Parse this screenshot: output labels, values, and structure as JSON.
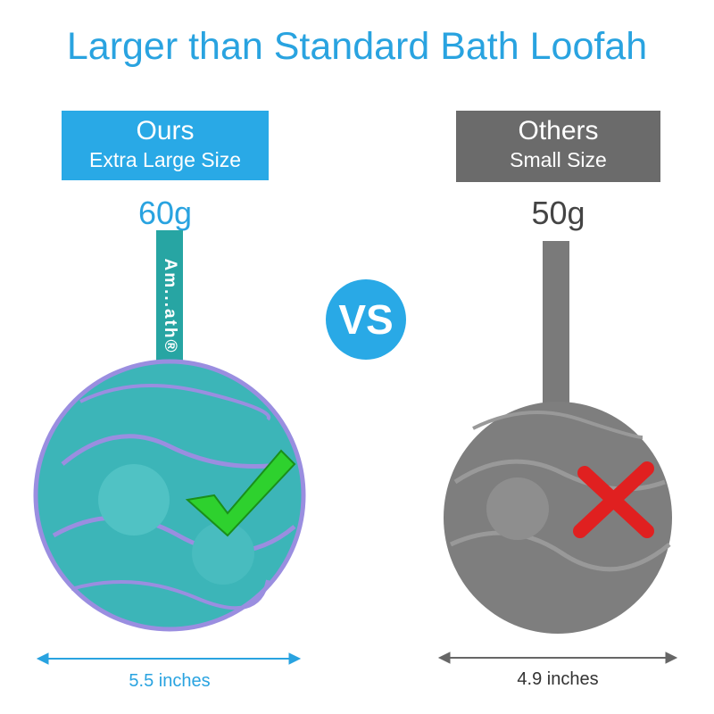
{
  "title": "Larger than Standard Bath Loofah",
  "ours": {
    "heading": "Ours",
    "subheading": "Extra Large Size",
    "weight": "60g",
    "size": "5.5 inches",
    "color": "#29a9e6",
    "mark": "check-icon"
  },
  "others": {
    "heading": "Others",
    "subheading": "Small Size",
    "weight": "50g",
    "size": "4.9 inches",
    "color": "#6b6b6b",
    "mark": "cross-icon"
  },
  "vs_label": "VS",
  "brand_strap": "Am...ath®"
}
